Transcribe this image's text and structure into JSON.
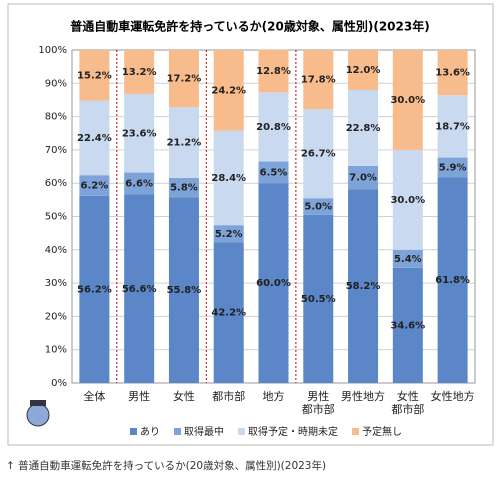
{
  "caption": "普通自動車運転免許を持っているか(20歳対象、属性別)(2023年)",
  "chart_data": {
    "type": "stacked_bar",
    "title": "普通自動車運転免許を持っているか(20歳対象、属性別)(2023年)",
    "categories": [
      "全体",
      "男性",
      "女性",
      "都市部",
      "地方",
      "男性\n都市部",
      "男性地方",
      "女性\n都市部",
      "女性地方"
    ],
    "series": [
      {
        "name": "あり",
        "color": "#5b86c7",
        "values": [
          56.2,
          56.6,
          55.8,
          42.2,
          60.0,
          50.5,
          58.2,
          34.6,
          61.8
        ],
        "value_labels": [
          "56.2%",
          "56.6%",
          "55.8%",
          "42.2%",
          "60.0%",
          "50.5%",
          "58.2%",
          "34.6%",
          "61.8%"
        ]
      },
      {
        "name": "取得最中",
        "color": "#7ea3d8",
        "values": [
          6.2,
          6.6,
          5.8,
          5.2,
          6.5,
          5.0,
          7.0,
          5.4,
          5.9
        ],
        "value_labels": [
          "6.2%",
          "6.6%",
          "5.8%",
          "5.2%",
          "6.5%",
          "5.0%",
          "7.0%",
          "5.4%",
          "5.9%"
        ]
      },
      {
        "name": "取得予定・時期未定",
        "color": "#c9daf0",
        "values": [
          22.4,
          23.6,
          21.2,
          28.4,
          20.8,
          26.7,
          22.8,
          30.0,
          18.7
        ],
        "value_labels": [
          "22.4%",
          "23.6%",
          "21.2%",
          "28.4%",
          "20.8%",
          "26.7%",
          "22.8%",
          "30.0%",
          "18.7%"
        ]
      },
      {
        "name": "予定無し",
        "color": "#f8bb8c",
        "values": [
          15.2,
          13.2,
          17.2,
          24.2,
          12.8,
          17.8,
          12.0,
          30.0,
          13.6
        ],
        "value_labels": [
          "15.2%",
          "13.2%",
          "17.2%",
          "24.2%",
          "12.8%",
          "17.8%",
          "12.0%",
          "30.0%",
          "13.6%"
        ]
      }
    ],
    "ylim": [
      0,
      100
    ],
    "yticks": [
      {
        "value": 0,
        "label": "0%"
      },
      {
        "value": 10,
        "label": "10%"
      },
      {
        "value": 20,
        "label": "20%"
      },
      {
        "value": 30,
        "label": "30%"
      },
      {
        "value": 40,
        "label": "40%"
      },
      {
        "value": 50,
        "label": "50%"
      },
      {
        "value": 60,
        "label": "60%"
      },
      {
        "value": 70,
        "label": "70%"
      },
      {
        "value": 80,
        "label": "80%"
      },
      {
        "value": 90,
        "label": "90%"
      },
      {
        "value": 100,
        "label": "100%"
      }
    ],
    "grid": true,
    "legend": "bottom"
  }
}
